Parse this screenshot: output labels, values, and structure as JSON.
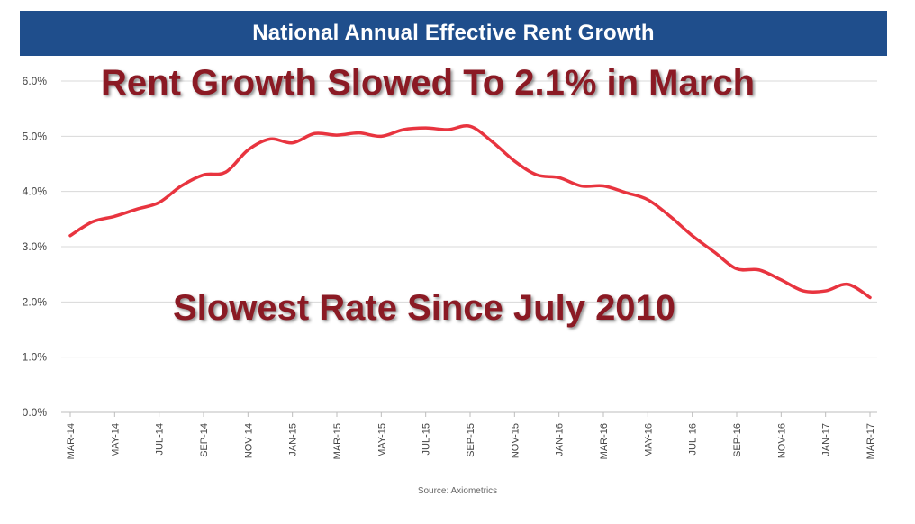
{
  "chart_data": {
    "type": "line",
    "title": "National Annual Effective Rent Growth",
    "xlabel": "",
    "ylabel": "",
    "ylim": [
      0,
      6
    ],
    "y_ticks": [
      "0.0%",
      "1.0%",
      "2.0%",
      "3.0%",
      "4.0%",
      "5.0%",
      "6.0%"
    ],
    "categories": [
      "MAR-14",
      "MAY-14",
      "JUL-14",
      "SEP-14",
      "NOV-14",
      "JAN-15",
      "MAR-15",
      "MAY-15",
      "JUL-15",
      "SEP-15",
      "NOV-15",
      "JAN-16",
      "MAR-16",
      "MAY-16",
      "JUL-16",
      "SEP-16",
      "NOV-16",
      "JAN-17",
      "MAR-17"
    ],
    "series": [
      {
        "name": "Annual Effective Rent Growth",
        "color": "#e8343f",
        "x": [
          "MAR-14",
          "APR-14",
          "MAY-14",
          "JUN-14",
          "JUL-14",
          "AUG-14",
          "SEP-14",
          "OCT-14",
          "NOV-14",
          "DEC-14",
          "JAN-15",
          "FEB-15",
          "MAR-15",
          "APR-15",
          "MAY-15",
          "JUN-15",
          "JUL-15",
          "AUG-15",
          "SEP-15",
          "OCT-15",
          "NOV-15",
          "DEC-15",
          "JAN-16",
          "FEB-16",
          "MAR-16",
          "APR-16",
          "MAY-16",
          "JUN-16",
          "JUL-16",
          "AUG-16",
          "SEP-16",
          "OCT-16",
          "NOV-16",
          "DEC-16",
          "JAN-17",
          "FEB-17",
          "MAR-17"
        ],
        "values": [
          3.2,
          3.45,
          3.55,
          3.68,
          3.8,
          4.1,
          4.3,
          4.35,
          4.75,
          4.95,
          4.88,
          5.05,
          5.02,
          5.06,
          5.0,
          5.12,
          5.15,
          5.12,
          5.18,
          4.9,
          4.55,
          4.3,
          4.25,
          4.1,
          4.1,
          3.98,
          3.85,
          3.55,
          3.2,
          2.9,
          2.6,
          2.58,
          2.4,
          2.2,
          2.2,
          2.32,
          2.08
        ]
      }
    ],
    "annotations": [
      "Rent Growth Slowed To 2.1% in March",
      "Slowest Rate Since July 2010"
    ],
    "source": "Source: Axiometrics"
  },
  "colors": {
    "banner": "#1f4e8c",
    "line": "#e8343f",
    "annotation": "#8b1a24"
  }
}
